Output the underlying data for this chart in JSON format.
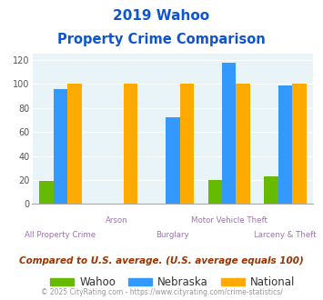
{
  "title_line1": "2019 Wahoo",
  "title_line2": "Property Crime Comparison",
  "categories": [
    "All Property Crime",
    "Arson",
    "Burglary",
    "Motor Vehicle Theft",
    "Larceny & Theft"
  ],
  "wahoo": [
    19,
    0,
    0,
    20,
    23
  ],
  "nebraska": [
    96,
    0,
    72,
    118,
    99
  ],
  "national": [
    100,
    100,
    100,
    100,
    100
  ],
  "wahoo_color": "#66bb00",
  "nebraska_color": "#3399ff",
  "national_color": "#ffaa00",
  "ylim": [
    0,
    125
  ],
  "yticks": [
    0,
    20,
    40,
    60,
    80,
    100,
    120
  ],
  "plot_bg": "#e8f4f8",
  "title_color": "#1155cc",
  "xlabel_color": "#9977aa",
  "note_text": "Compared to U.S. average. (U.S. average equals 100)",
  "note_color": "#993300",
  "footer_text": "© 2025 CityRating.com - https://www.cityrating.com/crime-statistics/",
  "footer_color": "#999999",
  "legend_labels": [
    "Wahoo",
    "Nebraska",
    "National"
  ],
  "bar_width": 0.25
}
